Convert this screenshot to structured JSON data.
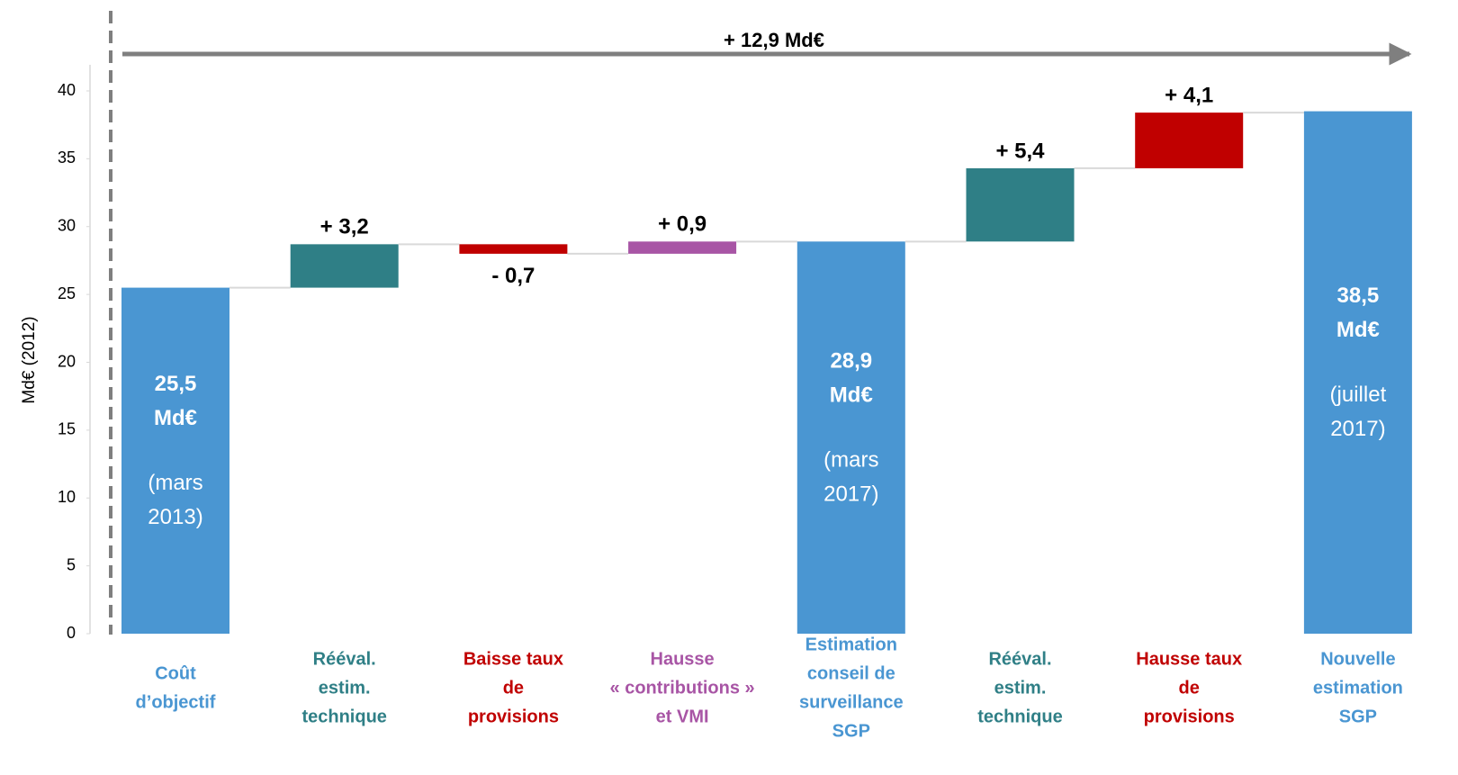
{
  "chart_data": {
    "type": "waterfall",
    "ylabel": "Md€ (2012)",
    "annotation": "+ 12,9 Md€",
    "categories": [
      [
        "Coût",
        "d’objectif"
      ],
      [
        "Rééval.",
        "estim.",
        "technique"
      ],
      [
        "Baisse taux",
        "de",
        "provisions"
      ],
      [
        "Hausse",
        "« contributions »",
        "et VMI"
      ],
      [
        "Estimation",
        "conseil de",
        "surveillance",
        "SGP"
      ],
      [
        "Rééval.",
        "estim.",
        "technique"
      ],
      [
        "Hausse taux",
        "de",
        "provisions"
      ],
      [
        "Nouvelle",
        "estimation",
        "SGP"
      ]
    ],
    "kinds": [
      "total",
      "delta",
      "delta",
      "delta",
      "total",
      "delta",
      "delta",
      "total"
    ],
    "values": [
      25.5,
      3.2,
      -0.7,
      0.9,
      28.9,
      5.4,
      4.1,
      38.5
    ],
    "value_labels": [
      [
        "25,5",
        "Md€"
      ],
      [
        "+ 3,2"
      ],
      [
        "- 0,7"
      ],
      [
        "+ 0,9"
      ],
      [
        "28,9",
        "Md€"
      ],
      [
        "+ 5,4"
      ],
      [
        "+ 4,1"
      ],
      [
        "38,5",
        "Md€"
      ]
    ],
    "notes": [
      [
        "(mars",
        "2013)"
      ],
      null,
      null,
      null,
      [
        "(mars",
        "2017)"
      ],
      null,
      null,
      [
        "(juillet",
        "2017)"
      ]
    ],
    "colors": [
      "#4a96d2",
      "#2f7f86",
      "#c00000",
      "#a855a5",
      "#4a96d2",
      "#2f7f86",
      "#c00000",
      "#4a96d2"
    ],
    "ylim": [
      0,
      40
    ],
    "yticks": [
      0,
      5,
      10,
      15,
      20,
      25,
      30,
      35,
      40
    ]
  }
}
